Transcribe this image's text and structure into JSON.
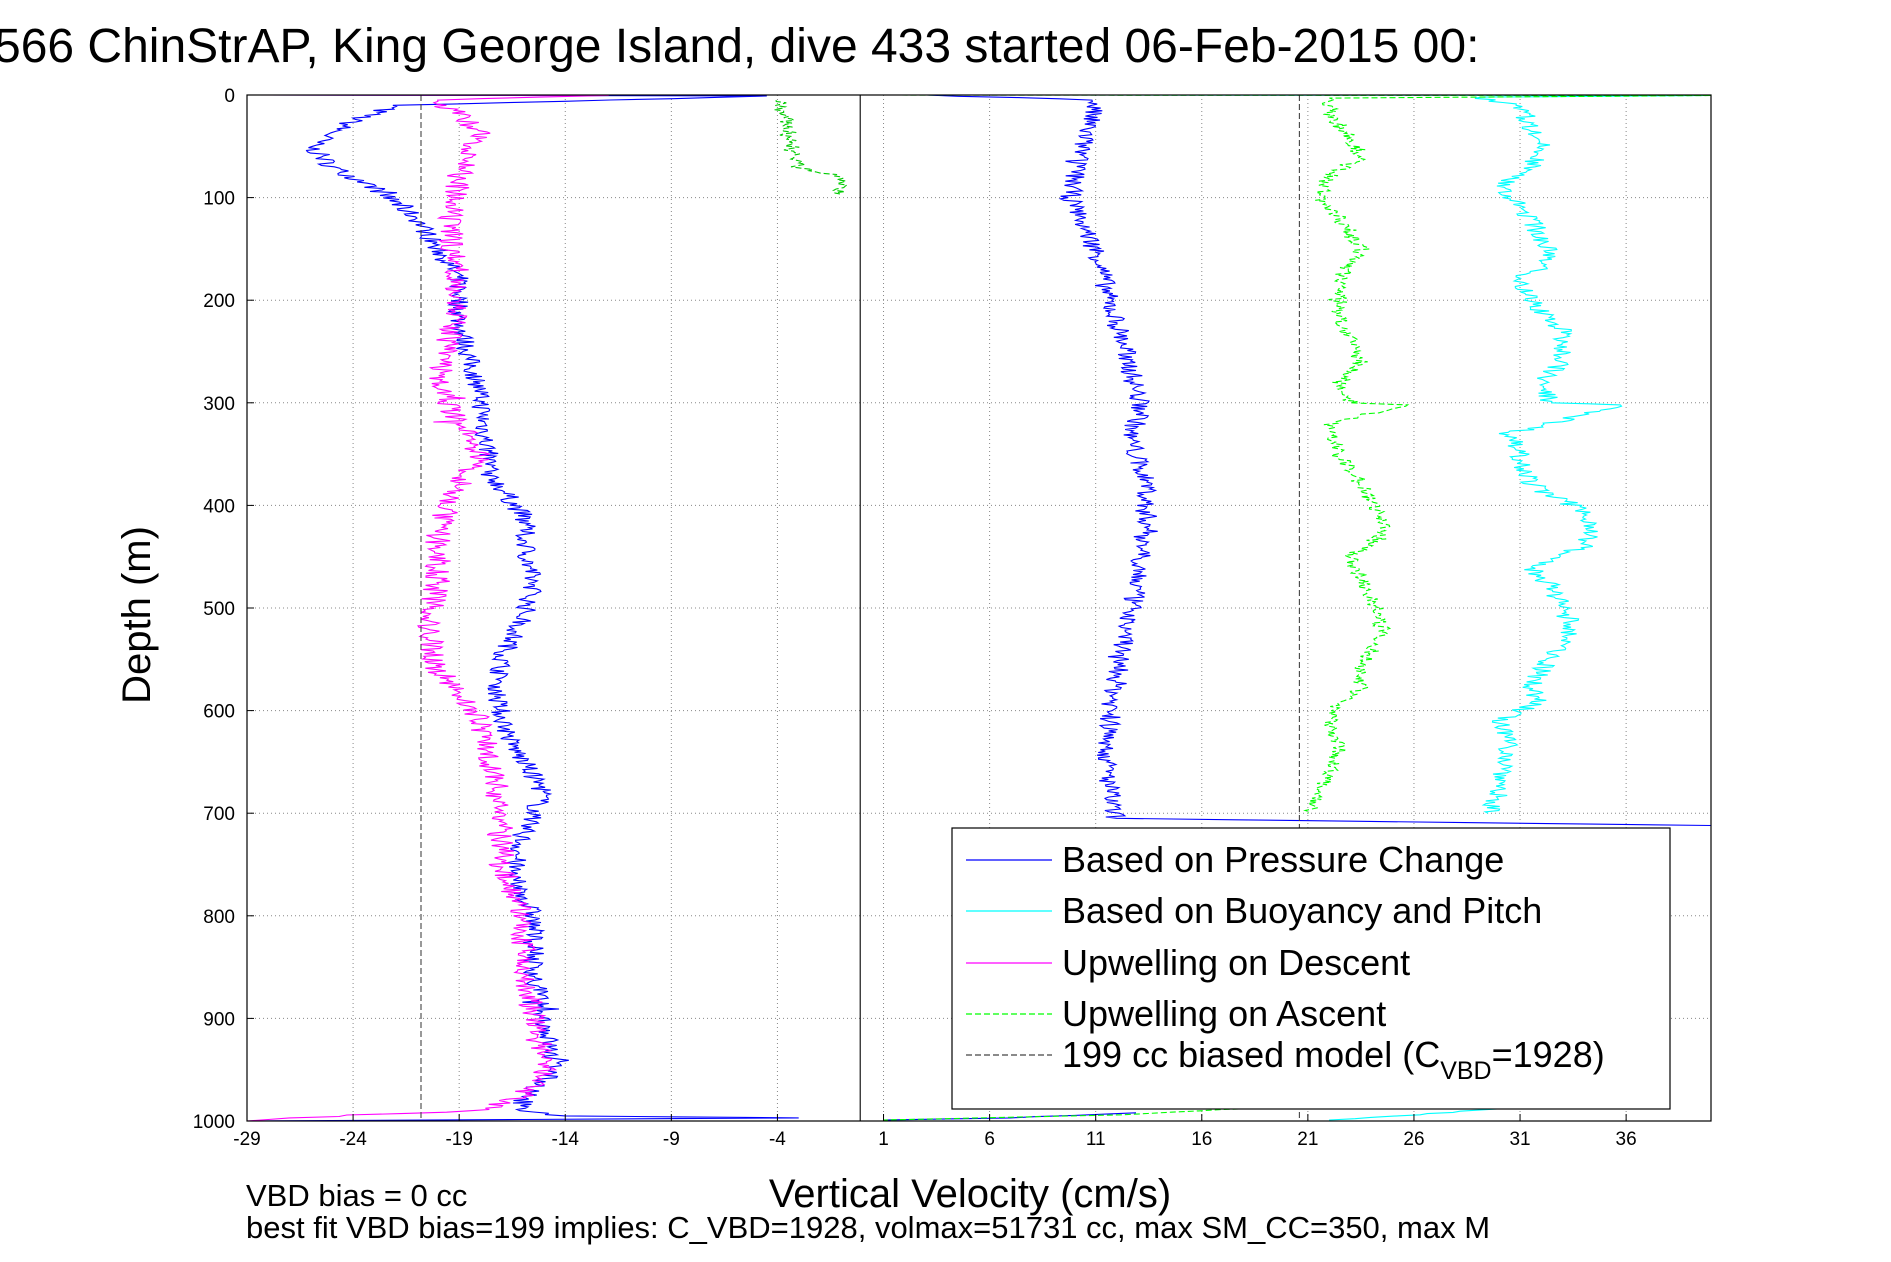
{
  "chart_data": {
    "type": "line",
    "title": "566 ChinStrAP, King George Island, dive 433 started 06-Feb-2015 00:",
    "xlabel": "Vertical Velocity (cm/s)",
    "ylabel": "Depth (m)",
    "xlim": [
      -29,
      40
    ],
    "ylim": [
      0,
      1000
    ],
    "y_reversed": true,
    "grid": true,
    "x_ticks": [
      -29,
      -24,
      -19,
      -14,
      -9,
      -4,
      1,
      6,
      11,
      16,
      21,
      26,
      31,
      36
    ],
    "y_ticks": [
      0,
      100,
      200,
      300,
      400,
      500,
      600,
      700,
      800,
      900,
      1000
    ],
    "legend_position": "bottom-right",
    "series": [
      {
        "name": "Based on Pressure Change",
        "color": "#0000ff",
        "style": "solid",
        "noise": 0.5,
        "points": [
          [
            -28,
            0
          ],
          [
            -4,
            1
          ],
          [
            -22,
            10
          ],
          [
            -24,
            25
          ],
          [
            -26,
            50
          ],
          [
            -25,
            70
          ],
          [
            -23,
            90
          ],
          [
            -21,
            120
          ],
          [
            -20,
            150
          ],
          [
            -19,
            180
          ],
          [
            -19,
            220
          ],
          [
            -18.5,
            260
          ],
          [
            -18,
            290
          ],
          [
            -17.8,
            330
          ],
          [
            -17.5,
            370
          ],
          [
            -16,
            410
          ],
          [
            -15.8,
            450
          ],
          [
            -15.5,
            480
          ],
          [
            -16,
            510
          ],
          [
            -17,
            550
          ],
          [
            -17.2,
            590
          ],
          [
            -16.6,
            630
          ],
          [
            -15,
            680
          ],
          [
            -16,
            720
          ],
          [
            -16.5,
            760
          ],
          [
            -15.5,
            800
          ],
          [
            -15.5,
            850
          ],
          [
            -15,
            900
          ],
          [
            -14.5,
            950
          ],
          [
            -16,
            980
          ],
          [
            -16,
            990
          ],
          [
            -14,
            995
          ],
          [
            -3,
            997
          ],
          [
            -29,
            1000
          ]
        ]
      },
      {
        "name": "Based on Pressure Change",
        "color": "#0000ff",
        "style": "solid",
        "noise": 0.5,
        "points": [
          [
            3,
            0
          ],
          [
            11,
            5
          ],
          [
            10.5,
            40
          ],
          [
            10,
            80
          ],
          [
            9.8,
            100
          ],
          [
            10.5,
            130
          ],
          [
            11.2,
            160
          ],
          [
            11.6,
            200
          ],
          [
            12.3,
            240
          ],
          [
            12.8,
            280
          ],
          [
            13.2,
            310
          ],
          [
            12.6,
            330
          ],
          [
            13,
            360
          ],
          [
            13.5,
            380
          ],
          [
            13.3,
            400
          ],
          [
            13.5,
            420
          ],
          [
            13,
            470
          ],
          [
            12.6,
            510
          ],
          [
            12.2,
            550
          ],
          [
            11.7,
            600
          ],
          [
            11.5,
            650
          ],
          [
            11.8,
            700
          ],
          [
            12,
            705
          ],
          [
            40,
            712
          ]
        ]
      },
      {
        "name": "Based on Pressure Change",
        "color": "#0000ff",
        "style": "solid",
        "noise": 0.3,
        "points": [
          [
            13,
            992
          ],
          [
            7,
            997
          ],
          [
            1,
            999
          ]
        ]
      },
      {
        "name": "Based on Buoyancy and Pitch",
        "color": "#00ffff",
        "style": "solid",
        "noise": 0.5,
        "points": [
          [
            10,
            0
          ],
          [
            40,
            0.5
          ],
          [
            29,
            2
          ],
          [
            31,
            10
          ],
          [
            31.5,
            30
          ],
          [
            32,
            50
          ],
          [
            31.5,
            70
          ],
          [
            30,
            90
          ],
          [
            30.5,
            100
          ],
          [
            31.5,
            120
          ],
          [
            32,
            140
          ],
          [
            32.5,
            160
          ],
          [
            31,
            180
          ],
          [
            31.5,
            200
          ],
          [
            33,
            230
          ],
          [
            33,
            260
          ],
          [
            32,
            280
          ],
          [
            32.5,
            300
          ],
          [
            36,
            302
          ],
          [
            30.5,
            330
          ],
          [
            31,
            350
          ],
          [
            31.5,
            380
          ],
          [
            33.5,
            400
          ],
          [
            34.5,
            420
          ],
          [
            34,
            440
          ],
          [
            31.5,
            460
          ],
          [
            32.5,
            480
          ],
          [
            33,
            500
          ],
          [
            33.5,
            520
          ],
          [
            32,
            560
          ],
          [
            31.5,
            580
          ],
          [
            32,
            590
          ],
          [
            30,
            610
          ],
          [
            30.5,
            640
          ],
          [
            30,
            680
          ],
          [
            29.5,
            700
          ]
        ]
      },
      {
        "name": "Based on Buoyancy and Pitch",
        "color": "#00ffff",
        "style": "solid",
        "noise": 0.3,
        "points": [
          [
            30,
            988
          ],
          [
            26,
            994
          ],
          [
            22,
            999
          ]
        ]
      },
      {
        "name": "Upwelling on Descent",
        "color": "#ff00ff",
        "style": "solid",
        "noise": 0.6,
        "points": [
          [
            -29,
            0
          ],
          [
            -12,
            0.5
          ],
          [
            -20,
            5
          ],
          [
            -19,
            20
          ],
          [
            -18,
            40
          ],
          [
            -19,
            80
          ],
          [
            -19.5,
            120
          ],
          [
            -19.2,
            160
          ],
          [
            -19,
            200
          ],
          [
            -19.5,
            240
          ],
          [
            -20,
            280
          ],
          [
            -19,
            320
          ],
          [
            -18,
            350
          ],
          [
            -19,
            380
          ],
          [
            -20,
            420
          ],
          [
            -20,
            470
          ],
          [
            -20.5,
            520
          ],
          [
            -20,
            560
          ],
          [
            -18,
            610
          ],
          [
            -17.5,
            650
          ],
          [
            -17,
            700
          ],
          [
            -17,
            750
          ],
          [
            -16,
            800
          ],
          [
            -16,
            850
          ],
          [
            -15.5,
            900
          ],
          [
            -15,
            950
          ],
          [
            -16,
            975
          ],
          [
            -18,
            990
          ],
          [
            -27,
            997
          ],
          [
            -29,
            1000
          ]
        ]
      },
      {
        "name": "Upwelling on Ascent",
        "color": "#00cc00",
        "style": "dashed",
        "noise": 0.4,
        "points": [
          [
            -4,
            5
          ],
          [
            -3.5,
            30
          ],
          [
            -3.3,
            60
          ],
          [
            -3,
            70
          ],
          [
            -1,
            80
          ],
          [
            -1,
            98
          ]
        ]
      },
      {
        "name": "Upwelling on Ascent",
        "color": "#00ff00",
        "style": "dashed",
        "noise": 0.4,
        "points": [
          [
            1,
            0
          ],
          [
            40,
            0.5
          ],
          [
            22,
            3
          ],
          [
            22,
            20
          ],
          [
            23,
            40
          ],
          [
            23.5,
            60
          ],
          [
            22,
            80
          ],
          [
            21.5,
            100
          ],
          [
            22.5,
            120
          ],
          [
            23.5,
            150
          ],
          [
            22.5,
            180
          ],
          [
            22.5,
            220
          ],
          [
            23,
            240
          ],
          [
            23.5,
            260
          ],
          [
            22.5,
            280
          ],
          [
            23,
            300
          ],
          [
            25.5,
            302
          ],
          [
            22,
            320
          ],
          [
            22.5,
            350
          ],
          [
            23.5,
            380
          ],
          [
            24.5,
            410
          ],
          [
            24.5,
            430
          ],
          [
            23,
            450
          ],
          [
            23.5,
            470
          ],
          [
            24,
            490
          ],
          [
            24.5,
            520
          ],
          [
            23.5,
            560
          ],
          [
            23.5,
            580
          ],
          [
            22,
            600
          ],
          [
            22.5,
            640
          ],
          [
            21.5,
            680
          ],
          [
            21,
            700
          ]
        ]
      },
      {
        "name": "Upwelling on Ascent",
        "color": "#00ff00",
        "style": "dashed",
        "noise": 0.3,
        "points": [
          [
            21,
            985
          ],
          [
            12,
            994
          ],
          [
            1,
            999
          ]
        ]
      },
      {
        "name": "199 cc biased model (C",
        "color": "#444444",
        "style": "dashed",
        "noise": 0,
        "points": [
          [
            -20.8,
            0
          ],
          [
            -20.8,
            1000
          ]
        ]
      },
      {
        "name": "199 cc biased model (C",
        "color": "#444444",
        "style": "dashed",
        "noise": 0,
        "points": [
          [
            20.6,
            0
          ],
          [
            20.6,
            1000
          ]
        ]
      },
      {
        "name": "",
        "color": "#000000",
        "style": "solid",
        "noise": 0,
        "points": [
          [
            -0.1,
            0
          ],
          [
            -0.1,
            1000
          ]
        ]
      }
    ],
    "legend": [
      {
        "label": "Based on Pressure Change",
        "color": "#0000ff",
        "style": "solid"
      },
      {
        "label": "Based on Buoyancy and Pitch",
        "color": "#00ffff",
        "style": "solid"
      },
      {
        "label": "Upwelling on Descent",
        "color": "#ff00ff",
        "style": "solid"
      },
      {
        "label": "Upwelling on Ascent",
        "color": "#00ff00",
        "style": "dashed"
      },
      {
        "label": "199 cc biased model (C",
        "sub": "VBD",
        "label_tail": "=1928)",
        "color": "#444444",
        "style": "dashed"
      }
    ]
  },
  "footer": {
    "line1": "VBD bias = 0 cc",
    "line2": "best fit VBD bias=199 implies: C_VBD=1928, volmax=51731 cc, max SM_CC=350, max M"
  }
}
